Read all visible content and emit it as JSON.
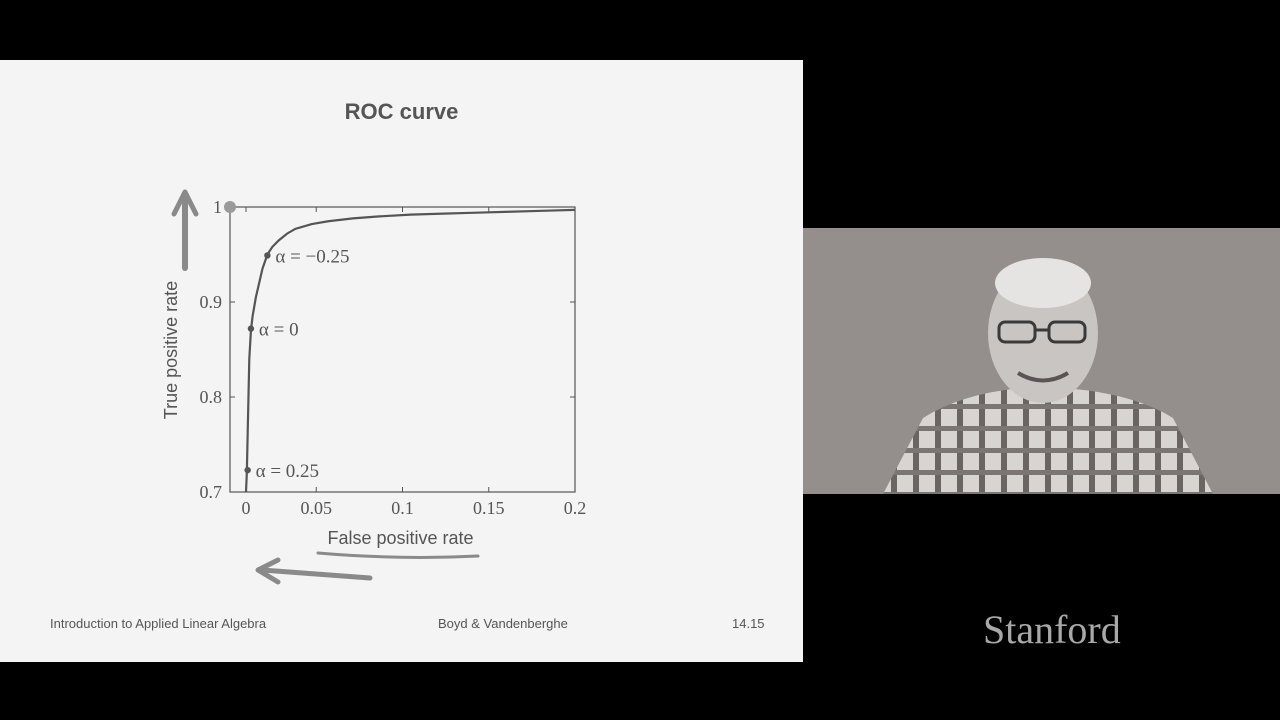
{
  "slide": {
    "footer_left": "Introduction to Applied Linear Algebra",
    "footer_center": "Boyd & Vandenberghe",
    "footer_right": "14.15"
  },
  "branding": {
    "logo_text": "Stanford"
  },
  "webcam": {
    "description": "presenter-video"
  },
  "colors": {
    "curve": "#555555",
    "ink": "#555555",
    "slide_bg": "#f4f4f4"
  },
  "chart_data": {
    "type": "line",
    "title": "ROC curve",
    "xlabel": "False positive rate",
    "ylabel": "True positive rate",
    "xlim": [
      0,
      0.2
    ],
    "ylim": [
      0.7,
      1
    ],
    "xticks": [
      0,
      0.05,
      0.1,
      0.15,
      0.2
    ],
    "xtick_labels": [
      "0",
      "0.05",
      "0.1",
      "0.15",
      "0.2"
    ],
    "yticks": [
      0.7,
      0.8,
      0.9,
      1
    ],
    "ytick_labels": [
      "0.7",
      "0.8",
      "0.9",
      "1"
    ],
    "grid": false,
    "series": [
      {
        "x": [
          0.0,
          0.0005,
          0.001,
          0.0015,
          0.002,
          0.003,
          0.004,
          0.006,
          0.008,
          0.01,
          0.013,
          0.016,
          0.02,
          0.025,
          0.03,
          0.04,
          0.05,
          0.065,
          0.08,
          0.1,
          0.12,
          0.14,
          0.16,
          0.18,
          0.2
        ],
        "y": [
          0.7,
          0.72,
          0.76,
          0.8,
          0.84,
          0.87,
          0.885,
          0.905,
          0.92,
          0.935,
          0.95,
          0.958,
          0.965,
          0.972,
          0.977,
          0.982,
          0.985,
          0.988,
          0.99,
          0.992,
          0.993,
          0.994,
          0.995,
          0.996,
          0.997
        ]
      }
    ],
    "annotations": [
      {
        "label": "α = −0.25",
        "x": 0.013,
        "y": 0.949
      },
      {
        "label": "α = 0",
        "x": 0.003,
        "y": 0.872
      },
      {
        "label": "α = 0.25",
        "x": 0.001,
        "y": 0.723
      }
    ],
    "highlight_point": {
      "x": 0,
      "y": 1
    }
  }
}
